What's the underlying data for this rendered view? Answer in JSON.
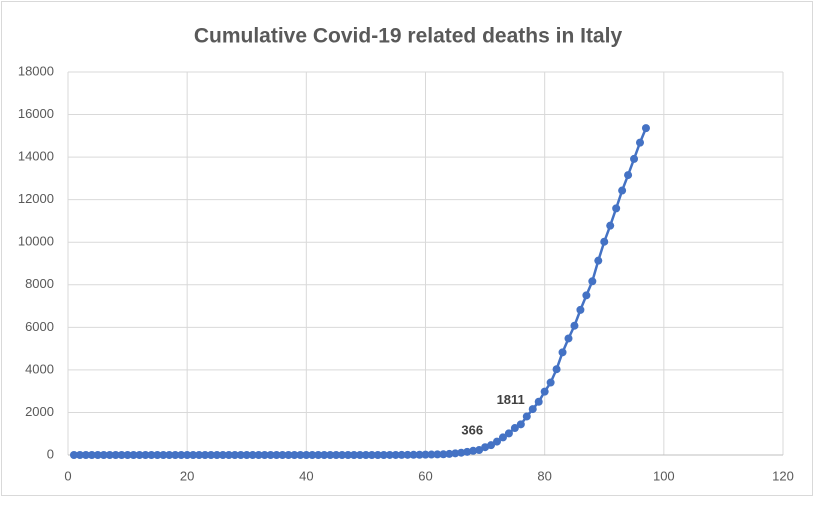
{
  "chart_data": {
    "type": "scatter-line",
    "title": "Cumulative Covid-19 related deaths in Italy",
    "x": [
      1,
      2,
      3,
      4,
      5,
      6,
      7,
      8,
      9,
      10,
      11,
      12,
      13,
      14,
      15,
      16,
      17,
      18,
      19,
      20,
      21,
      22,
      23,
      24,
      25,
      26,
      27,
      28,
      29,
      30,
      31,
      32,
      33,
      34,
      35,
      36,
      37,
      38,
      39,
      40,
      41,
      42,
      43,
      44,
      45,
      46,
      47,
      48,
      49,
      50,
      51,
      52,
      53,
      54,
      55,
      56,
      57,
      58,
      59,
      60,
      61,
      62,
      63,
      64,
      65,
      66,
      67,
      68,
      69,
      70,
      71,
      72,
      73,
      74,
      75,
      76,
      77,
      78,
      79,
      80,
      81,
      82,
      83,
      84,
      85,
      86,
      87,
      88,
      89,
      90,
      91,
      92,
      93,
      94,
      95,
      96,
      97
    ],
    "series": [
      {
        "color": "#4472c4",
        "values": [
          0,
          0,
          0,
          0,
          0,
          0,
          0,
          0,
          0,
          0,
          0,
          0,
          0,
          0,
          0,
          0,
          0,
          0,
          0,
          0,
          0,
          0,
          0,
          0,
          0,
          0,
          0,
          0,
          0,
          0,
          0,
          0,
          0,
          0,
          0,
          0,
          0,
          0,
          0,
          0,
          0,
          0,
          0,
          0,
          0,
          0,
          0,
          0,
          0,
          0,
          0,
          0,
          0,
          1,
          2,
          3,
          7,
          10,
          12,
          17,
          21,
          29,
          34,
          52,
          79,
          107,
          148,
          197,
          233,
          366,
          463,
          631,
          827,
          1016,
          1266,
          1441,
          1811,
          2158,
          2503,
          2978,
          3405,
          4032,
          4825,
          5476,
          6077,
          6820,
          7503,
          8165,
          9134,
          10023,
          10779,
          11591,
          12428,
          13155,
          13915,
          14681,
          15362
        ]
      }
    ],
    "labeled_indices": [
      69,
      76
    ],
    "xlim": [
      0,
      120
    ],
    "xticks": [
      0,
      20,
      40,
      60,
      80,
      100,
      120
    ],
    "ylim": [
      0,
      18000
    ],
    "yticks": [
      0,
      2000,
      4000,
      6000,
      8000,
      10000,
      12000,
      14000,
      16000,
      18000
    ],
    "grid": true
  }
}
